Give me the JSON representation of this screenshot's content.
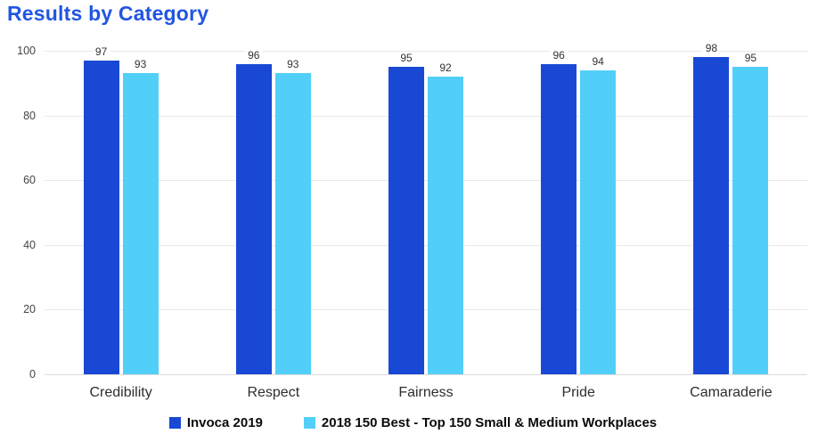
{
  "title": "Results by Category",
  "title_color": "#2155E2",
  "chart_data": {
    "type": "bar",
    "title": "Results by Category",
    "categories": [
      "Credibility",
      "Respect",
      "Fairness",
      "Pride",
      "Camaraderie"
    ],
    "series": [
      {
        "name": "Invoca 2019",
        "color": "#1848D4",
        "values": [
          97,
          96,
          95,
          96,
          98
        ]
      },
      {
        "name": "2018 150 Best - Top 150 Small & Medium Workplaces",
        "color": "#52CFF8",
        "values": [
          93,
          93,
          92,
          94,
          95
        ]
      }
    ],
    "xlabel": "",
    "ylabel": "",
    "ylim": [
      0,
      100
    ],
    "yticks": [
      0,
      20,
      40,
      60,
      80,
      100
    ],
    "grid": true,
    "value_labels": true,
    "legend_position": "bottom",
    "gridline_color": "#e9e9e9",
    "tick_label_color": "#444444",
    "value_label_color": "#333333",
    "category_label_color": "#2e2e2e"
  }
}
